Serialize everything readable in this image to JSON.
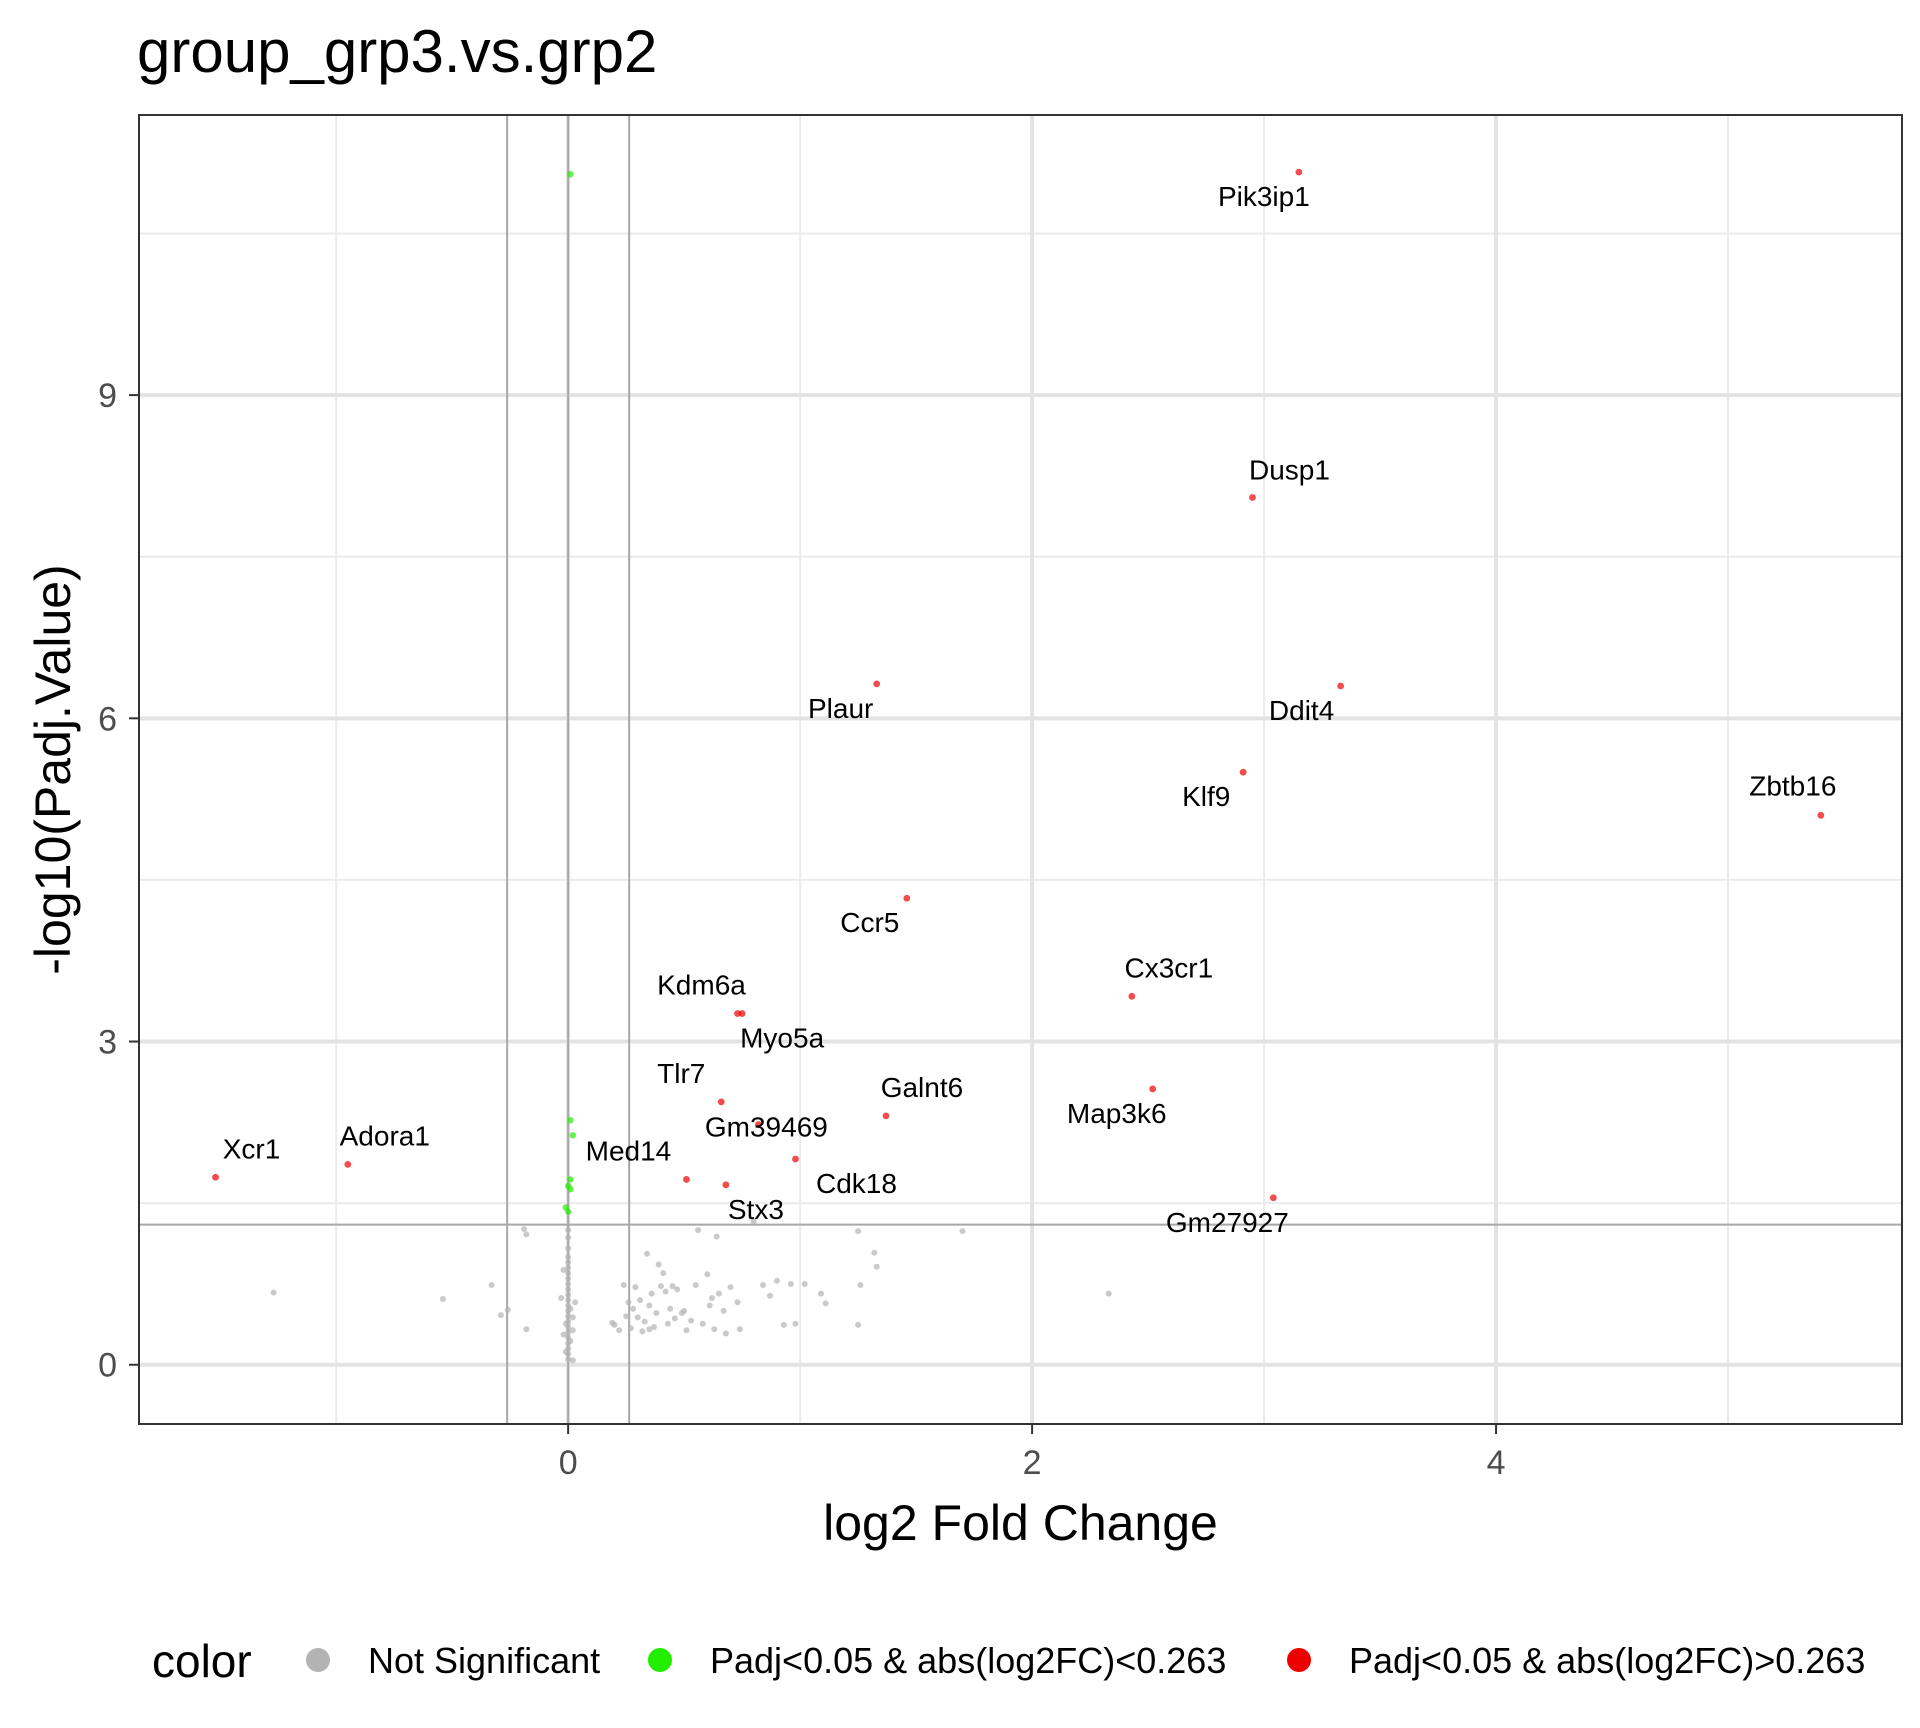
{
  "chart_data": {
    "type": "scatter",
    "title": "group_grp3.vs.grp2",
    "xlabel": "log2 Fold Change",
    "ylabel": "-log10(Padj.Value)",
    "xlim": [
      -1.85,
      5.75
    ],
    "ylim": [
      -0.55,
      11.6
    ],
    "x_ticks": [
      0,
      2,
      4
    ],
    "y_ticks": [
      0,
      3,
      6,
      9
    ],
    "x_tick_labels": [
      "0",
      "2",
      "4"
    ],
    "y_tick_labels": [
      "0",
      "3",
      "6",
      "9"
    ],
    "grid": true,
    "vlines": [
      -0.263,
      0,
      0.263
    ],
    "hline": 1.301,
    "legend_position": "bottom",
    "legend": {
      "title": "color",
      "entries": [
        {
          "label": "Not Significant",
          "color": "#b3b3b3"
        },
        {
          "label": "Padj<0.05 & abs(log2FC)<0.263",
          "color": "#22ee00"
        },
        {
          "label": "Padj<0.05 & abs(log2FC)>0.263",
          "color": "#ee0000"
        }
      ]
    },
    "series": [
      {
        "name": "Padj<0.05 & abs(log2FC)>0.263",
        "color": "#ee0000",
        "points": [
          {
            "x": 3.15,
            "y": 11.07,
            "label": "Pik3ip1"
          },
          {
            "x": 2.95,
            "y": 8.05,
            "label": "Dusp1"
          },
          {
            "x": 1.33,
            "y": 6.32,
            "label": "Plaur"
          },
          {
            "x": 3.33,
            "y": 6.3,
            "label": "Ddit4"
          },
          {
            "x": 2.91,
            "y": 5.5,
            "label": "Klf9"
          },
          {
            "x": 5.4,
            "y": 5.1,
            "label": "Zbtb16"
          },
          {
            "x": 1.46,
            "y": 4.33,
            "label": "Ccr5"
          },
          {
            "x": 2.43,
            "y": 3.42,
            "label": "Cx3cr1"
          },
          {
            "x": 0.73,
            "y": 3.26,
            "label": "Kdm6a"
          },
          {
            "x": 0.75,
            "y": 3.26,
            "label": "Myo5a"
          },
          {
            "x": 2.52,
            "y": 2.56,
            "label": "Map3k6"
          },
          {
            "x": 0.66,
            "y": 2.44,
            "label": "Tlr7"
          },
          {
            "x": 1.37,
            "y": 2.31,
            "label": "Galnt6"
          },
          {
            "x": 0.82,
            "y": 2.23,
            "label": "Gm39469"
          },
          {
            "x": -0.95,
            "y": 1.86,
            "label": "Adora1"
          },
          {
            "x": 0.98,
            "y": 1.91,
            "label": "Cdk18"
          },
          {
            "x": -1.52,
            "y": 1.74,
            "label": "Xcr1"
          },
          {
            "x": 0.51,
            "y": 1.72,
            "label": "Med14"
          },
          {
            "x": 0.68,
            "y": 1.67,
            "label": "Stx3"
          },
          {
            "x": 3.04,
            "y": 1.55,
            "label": "Gm27927"
          }
        ]
      },
      {
        "name": "Padj<0.05 & abs(log2FC)<0.263",
        "color": "#22ee00",
        "points": [
          {
            "x": 0.01,
            "y": 11.05
          },
          {
            "x": 0.01,
            "y": 2.27
          },
          {
            "x": 0.02,
            "y": 2.13
          },
          {
            "x": 0.01,
            "y": 1.72
          },
          {
            "x": 0.0,
            "y": 1.66
          },
          {
            "x": 0.01,
            "y": 1.63
          },
          {
            "x": -0.01,
            "y": 1.46
          },
          {
            "x": 0.0,
            "y": 1.42
          }
        ]
      },
      {
        "name": "Not Significant",
        "color": "#b3b3b3",
        "points": [
          {
            "x": -1.27,
            "y": 0.67
          },
          {
            "x": -0.54,
            "y": 0.61
          },
          {
            "x": -0.33,
            "y": 0.74
          },
          {
            "x": -0.29,
            "y": 0.46
          },
          {
            "x": -0.26,
            "y": 0.51
          },
          {
            "x": -0.19,
            "y": 1.26
          },
          {
            "x": -0.18,
            "y": 1.21
          },
          {
            "x": -0.18,
            "y": 0.33
          },
          {
            "x": -0.03,
            "y": 0.62
          },
          {
            "x": 0.0,
            "y": 0.05
          },
          {
            "x": 0.0,
            "y": 0.1
          },
          {
            "x": 0.0,
            "y": 0.15
          },
          {
            "x": 0.0,
            "y": 0.2
          },
          {
            "x": 0.0,
            "y": 0.25
          },
          {
            "x": 0.0,
            "y": 0.3
          },
          {
            "x": 0.0,
            "y": 0.35
          },
          {
            "x": 0.0,
            "y": 0.4
          },
          {
            "x": 0.0,
            "y": 0.45
          },
          {
            "x": 0.0,
            "y": 0.5
          },
          {
            "x": 0.0,
            "y": 0.55
          },
          {
            "x": 0.0,
            "y": 0.6
          },
          {
            "x": 0.0,
            "y": 0.65
          },
          {
            "x": 0.0,
            "y": 0.7
          },
          {
            "x": 0.0,
            "y": 0.75
          },
          {
            "x": 0.0,
            "y": 0.8
          },
          {
            "x": 0.0,
            "y": 0.85
          },
          {
            "x": 0.0,
            "y": 0.9
          },
          {
            "x": 0.0,
            "y": 0.95
          },
          {
            "x": 0.0,
            "y": 1.0
          },
          {
            "x": 0.0,
            "y": 1.08
          },
          {
            "x": 0.0,
            "y": 1.18
          },
          {
            "x": 0.0,
            "y": 1.25
          },
          {
            "x": -0.01,
            "y": 0.12
          },
          {
            "x": 0.01,
            "y": 0.22
          },
          {
            "x": -0.01,
            "y": 0.38
          },
          {
            "x": 0.01,
            "y": 0.52
          },
          {
            "x": 0.02,
            "y": 0.04
          },
          {
            "x": -0.02,
            "y": 0.28
          },
          {
            "x": 0.02,
            "y": 0.44
          },
          {
            "x": 0.03,
            "y": 0.58
          },
          {
            "x": -0.02,
            "y": 0.88
          },
          {
            "x": 0.02,
            "y": 0.32
          },
          {
            "x": 0.19,
            "y": 0.39
          },
          {
            "x": 0.2,
            "y": 0.37
          },
          {
            "x": 0.22,
            "y": 0.32
          },
          {
            "x": 0.24,
            "y": 0.74
          },
          {
            "x": 0.25,
            "y": 0.45
          },
          {
            "x": 0.26,
            "y": 0.58
          },
          {
            "x": 0.27,
            "y": 0.34
          },
          {
            "x": 0.29,
            "y": 0.72
          },
          {
            "x": 0.3,
            "y": 0.44
          },
          {
            "x": 0.32,
            "y": 0.31
          },
          {
            "x": 0.33,
            "y": 0.4
          },
          {
            "x": 0.34,
            "y": 1.03
          },
          {
            "x": 0.35,
            "y": 0.55
          },
          {
            "x": 0.36,
            "y": 0.66
          },
          {
            "x": 0.37,
            "y": 0.35
          },
          {
            "x": 0.38,
            "y": 0.48
          },
          {
            "x": 0.39,
            "y": 0.93
          },
          {
            "x": 0.4,
            "y": 0.73
          },
          {
            "x": 0.41,
            "y": 0.85
          },
          {
            "x": 0.42,
            "y": 0.68
          },
          {
            "x": 0.43,
            "y": 0.38
          },
          {
            "x": 0.44,
            "y": 0.52
          },
          {
            "x": 0.45,
            "y": 0.73
          },
          {
            "x": 0.46,
            "y": 0.43
          },
          {
            "x": 0.47,
            "y": 0.7
          },
          {
            "x": 0.49,
            "y": 0.48
          },
          {
            "x": 0.5,
            "y": 0.5
          },
          {
            "x": 0.51,
            "y": 0.32
          },
          {
            "x": 0.53,
            "y": 0.41
          },
          {
            "x": 0.55,
            "y": 0.74
          },
          {
            "x": 0.56,
            "y": 1.25
          },
          {
            "x": 0.58,
            "y": 0.38
          },
          {
            "x": 0.6,
            "y": 0.84
          },
          {
            "x": 0.61,
            "y": 0.55
          },
          {
            "x": 0.62,
            "y": 0.62
          },
          {
            "x": 0.63,
            "y": 0.33
          },
          {
            "x": 0.65,
            "y": 0.66
          },
          {
            "x": 0.67,
            "y": 0.5
          },
          {
            "x": 0.68,
            "y": 0.29
          },
          {
            "x": 0.7,
            "y": 0.72
          },
          {
            "x": 0.73,
            "y": 0.58
          },
          {
            "x": 0.74,
            "y": 0.33
          },
          {
            "x": 0.8,
            "y": 1.33
          },
          {
            "x": 0.84,
            "y": 0.74
          },
          {
            "x": 0.87,
            "y": 0.64
          },
          {
            "x": 0.9,
            "y": 0.78
          },
          {
            "x": 0.93,
            "y": 0.37
          },
          {
            "x": 0.96,
            "y": 0.75
          },
          {
            "x": 0.98,
            "y": 0.38
          },
          {
            "x": 1.02,
            "y": 0.75
          },
          {
            "x": 1.09,
            "y": 0.66
          },
          {
            "x": 1.11,
            "y": 0.57
          },
          {
            "x": 1.25,
            "y": 1.24
          },
          {
            "x": 1.25,
            "y": 0.37
          },
          {
            "x": 1.32,
            "y": 1.04
          },
          {
            "x": 1.33,
            "y": 0.91
          },
          {
            "x": 1.26,
            "y": 0.74
          },
          {
            "x": 1.7,
            "y": 1.24
          },
          {
            "x": 2.33,
            "y": 0.66
          },
          {
            "x": 0.64,
            "y": 1.19
          },
          {
            "x": 0.28,
            "y": 0.52
          },
          {
            "x": 0.31,
            "y": 0.6
          },
          {
            "x": 0.35,
            "y": 0.33
          }
        ]
      }
    ]
  }
}
